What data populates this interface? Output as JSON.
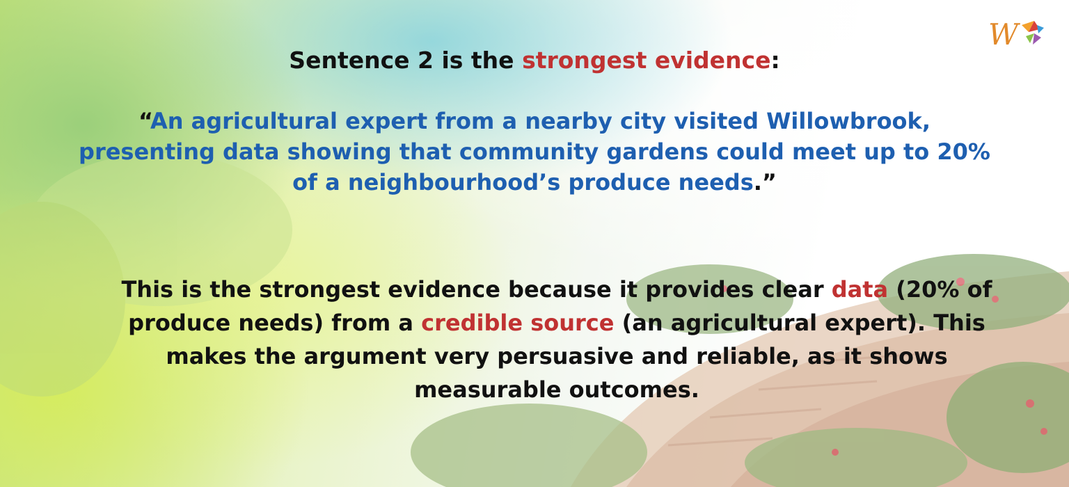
{
  "heading": {
    "prefix": "Sentence 2 is the ",
    "highlight": "strongest evidence",
    "suffix": ":"
  },
  "quote": {
    "open_mark": "“",
    "text": "An agricultural expert from a nearby city visited Willowbrook, presenting data showing that community gardens could meet up to 20% of a neighbourhood’s produce needs",
    "close_mark": ".”"
  },
  "explanation": {
    "part1": "This is the strongest evidence because it provides clear ",
    "highlight1": "data",
    "part2": " (20% of produce needs) from a ",
    "highlight2": "credible source",
    "part3": " (an agricultural expert). This makes the argument very persuasive and reliable, as it shows measurable outcomes."
  },
  "logo": {
    "icon": "brand-logo-icon"
  },
  "colors": {
    "quote_blue": "#1e5fb0",
    "highlight_red": "#c03232",
    "logo_orange": "#e28a2b"
  }
}
